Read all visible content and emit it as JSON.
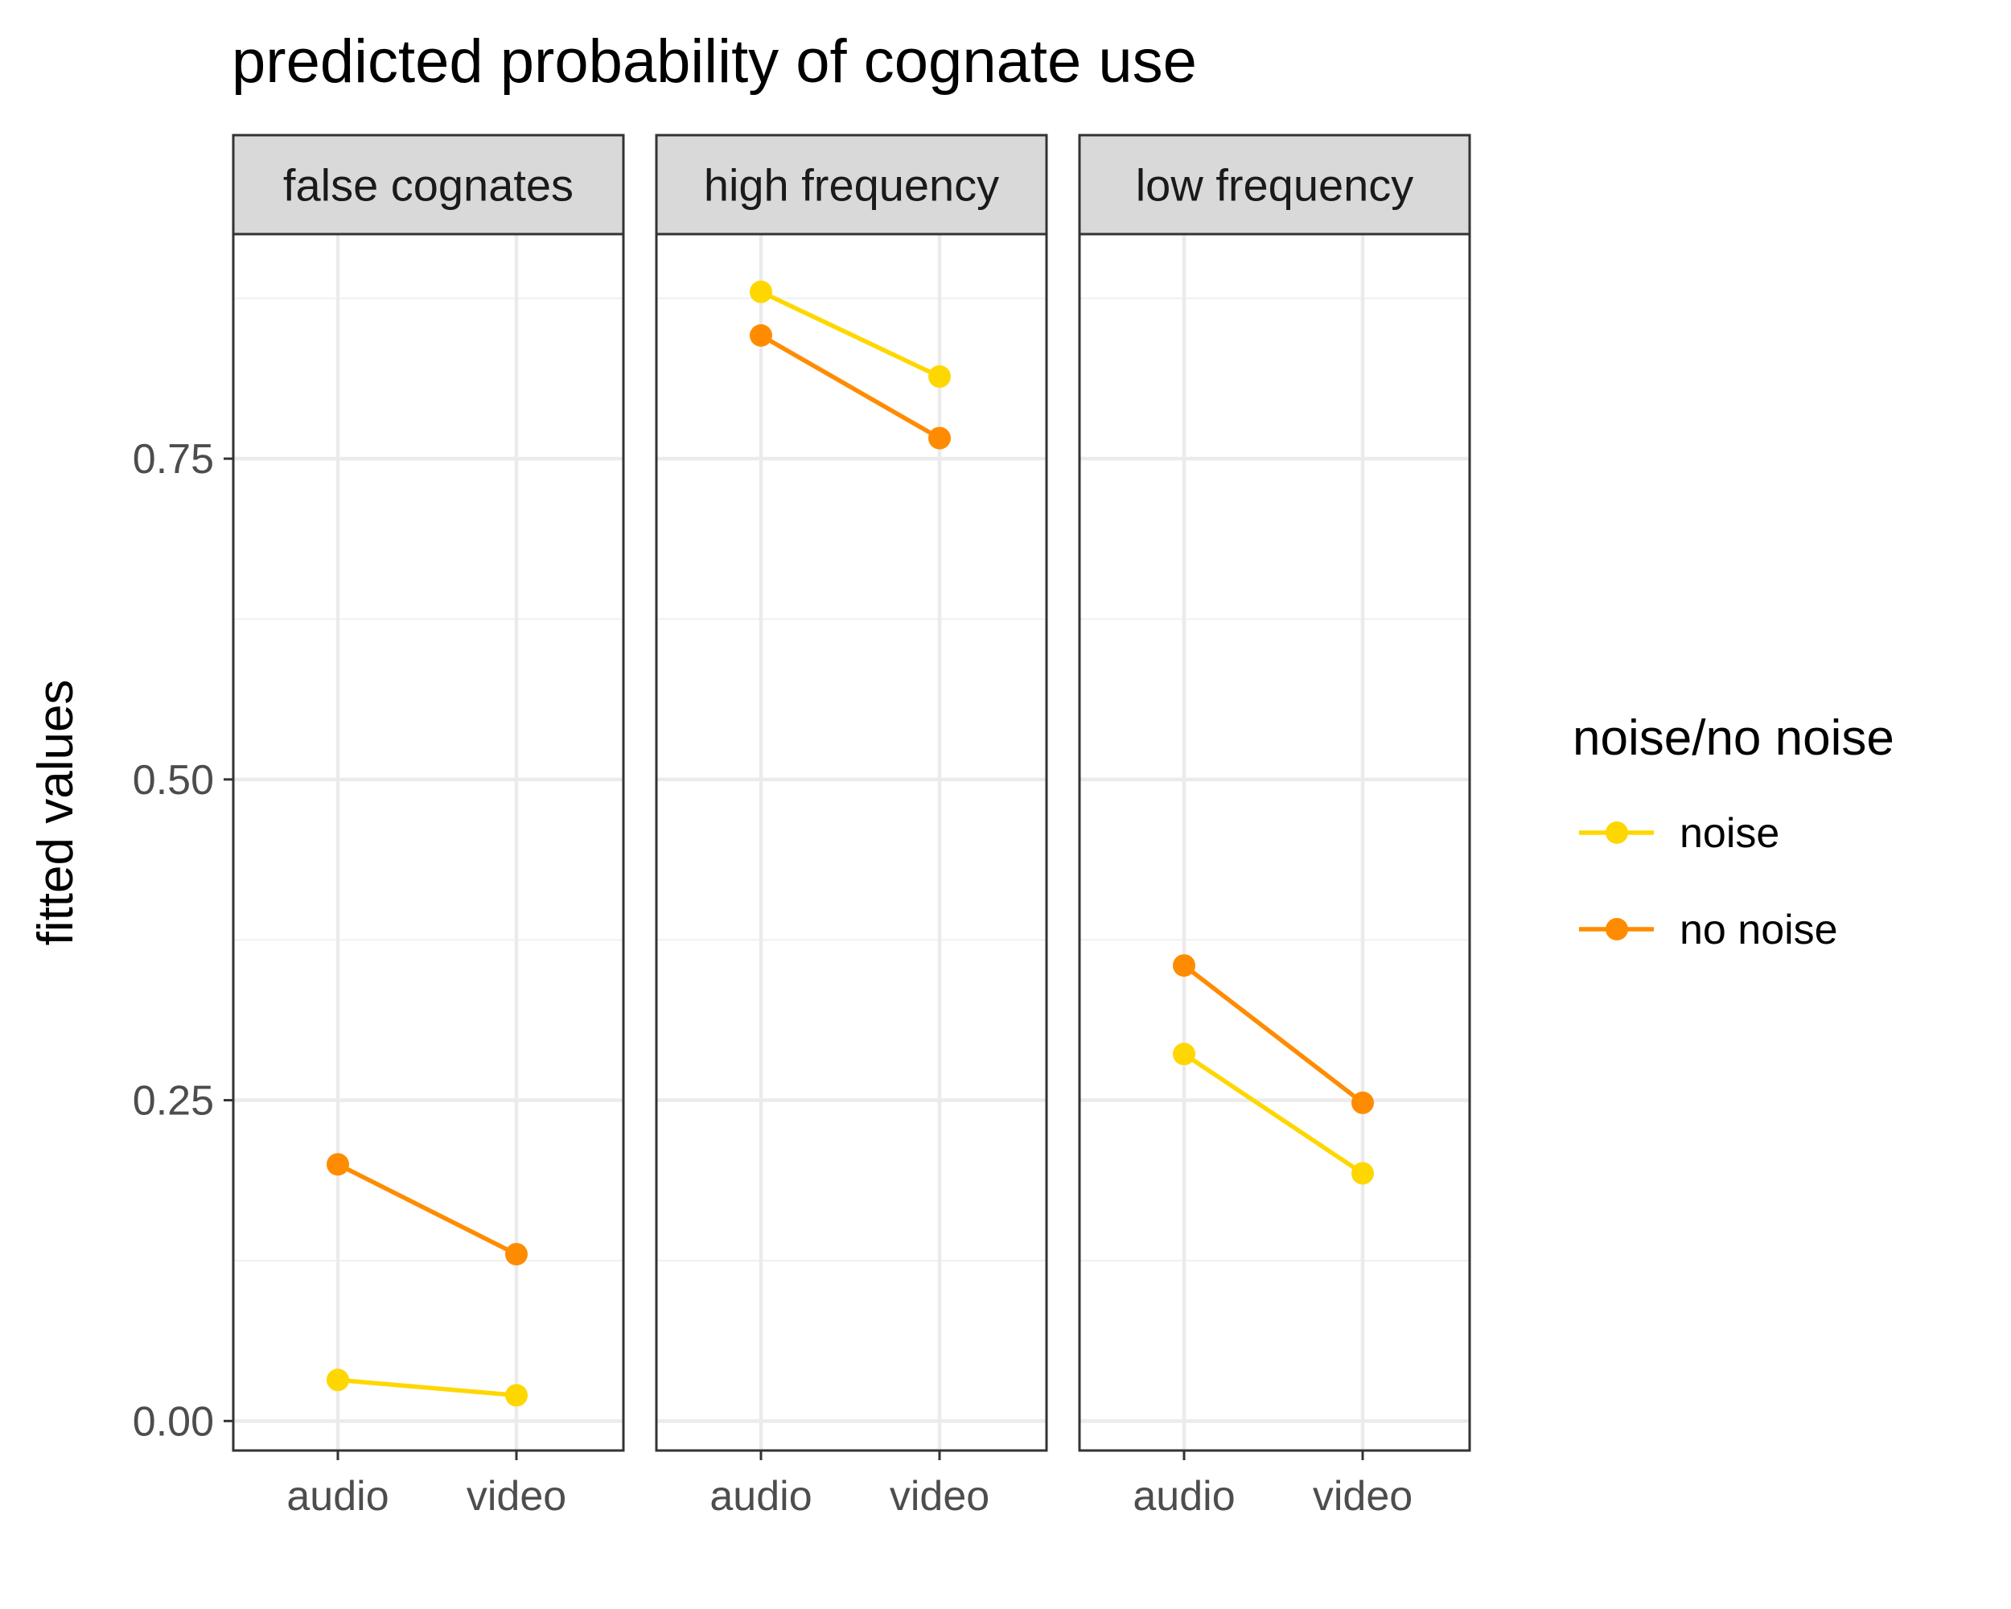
{
  "chart_data": {
    "type": "line",
    "title": "predicted probability of cognate use",
    "ylabel": "fitted values",
    "xlabel": "",
    "ylim": [
      -0.023,
      0.925
    ],
    "y_ticks": [
      0.0,
      0.25,
      0.5,
      0.75
    ],
    "y_tick_labels": [
      "0.00",
      "0.25",
      "0.50",
      "0.75"
    ],
    "y_minor_ticks": [
      0.125,
      0.375,
      0.625,
      0.875
    ],
    "categories": [
      "audio",
      "video"
    ],
    "grid": true,
    "legend": {
      "title": "noise/no noise",
      "position": "right",
      "entries": [
        {
          "name": "noise",
          "color": "#FFD700"
        },
        {
          "name": "no noise",
          "color": "#FF8C00"
        }
      ]
    },
    "panels": [
      {
        "label": "false cognates",
        "series": [
          {
            "name": "noise",
            "values": [
              0.032,
              0.02
            ]
          },
          {
            "name": "no noise",
            "values": [
              0.2,
              0.13
            ]
          }
        ]
      },
      {
        "label": "high frequency",
        "series": [
          {
            "name": "noise",
            "values": [
              0.88,
              0.814
            ]
          },
          {
            "name": "no noise",
            "values": [
              0.846,
              0.766
            ]
          }
        ]
      },
      {
        "label": "low frequency",
        "series": [
          {
            "name": "noise",
            "values": [
              0.286,
              0.193
            ]
          },
          {
            "name": "no noise",
            "values": [
              0.355,
              0.248
            ]
          }
        ]
      }
    ]
  }
}
